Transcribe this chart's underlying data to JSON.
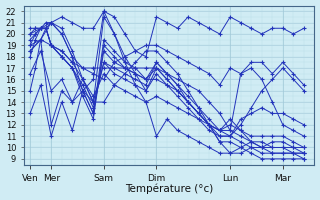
{
  "title": "",
  "xlabel": "Température (°c)",
  "bg_color": "#d0ecf4",
  "grid_color_major": "#a0c8d8",
  "grid_color_minor": "#b8dce8",
  "line_color": "#2233bb",
  "marker": "+",
  "markersize": 3.5,
  "linewidth": 0.7,
  "ylim": [
    8.5,
    22.5
  ],
  "yticks": [
    9,
    10,
    11,
    12,
    13,
    14,
    15,
    16,
    17,
    18,
    19,
    20,
    21,
    22
  ],
  "xtick_labels": [
    "Ven",
    "Mer",
    "Sam",
    "Dim",
    "Lun",
    "Mar"
  ],
  "xtick_positions": [
    0.0,
    1.0,
    3.5,
    6.0,
    9.5,
    12.0
  ],
  "xlim": [
    -0.3,
    13.5
  ],
  "series": [
    {
      "x": [
        0.0,
        0.25,
        0.5,
        0.75,
        1.0,
        1.5,
        2.0,
        2.5,
        3.0,
        3.5,
        4.0,
        4.5,
        5.0,
        5.5,
        6.0,
        6.5,
        7.0,
        7.5,
        8.0,
        8.5,
        9.0,
        9.5,
        10.0,
        10.5,
        11.0,
        11.5,
        12.0,
        12.5,
        13.0
      ],
      "y": [
        15.0,
        17.0,
        19.5,
        20.5,
        21.0,
        20.5,
        18.5,
        16.0,
        14.0,
        21.5,
        20.0,
        18.0,
        16.5,
        15.0,
        16.5,
        15.5,
        14.5,
        13.5,
        12.5,
        11.5,
        11.0,
        11.0,
        12.0,
        13.5,
        15.0,
        16.0,
        17.0,
        16.0,
        15.0
      ]
    },
    {
      "x": [
        0.0,
        0.25,
        0.5,
        0.75,
        1.0,
        1.5,
        2.0,
        2.5,
        3.0,
        3.5,
        4.0,
        4.5,
        5.0,
        5.5,
        6.0,
        6.5,
        7.0,
        7.5,
        8.0,
        8.5,
        9.0,
        9.5,
        10.0,
        10.5,
        11.0,
        11.5,
        12.0,
        12.5,
        13.0
      ],
      "y": [
        18.0,
        19.5,
        20.5,
        21.0,
        21.0,
        20.0,
        18.0,
        15.0,
        13.0,
        19.5,
        18.5,
        17.5,
        17.0,
        16.0,
        17.5,
        16.5,
        15.5,
        14.5,
        13.5,
        12.5,
        11.5,
        12.5,
        11.5,
        10.5,
        10.0,
        10.5,
        10.5,
        10.0,
        9.5
      ]
    },
    {
      "x": [
        0.0,
        0.25,
        0.5,
        0.75,
        1.0,
        1.5,
        2.0,
        2.5,
        3.0,
        3.5,
        4.0,
        4.5,
        5.0,
        5.5,
        6.0,
        6.5,
        7.0,
        7.5,
        8.0,
        8.5,
        9.0,
        9.5,
        10.0,
        10.5,
        11.0,
        11.5,
        12.0,
        12.5,
        13.0
      ],
      "y": [
        19.0,
        20.0,
        20.5,
        20.5,
        19.0,
        18.0,
        17.0,
        14.5,
        12.5,
        19.0,
        18.0,
        17.0,
        16.5,
        16.0,
        16.0,
        15.5,
        15.0,
        14.0,
        13.0,
        12.0,
        11.5,
        11.5,
        11.0,
        10.5,
        10.0,
        10.0,
        10.0,
        9.5,
        9.5
      ]
    },
    {
      "x": [
        0.0,
        0.25,
        0.5,
        0.75,
        1.0,
        1.5,
        2.0,
        2.5,
        3.0,
        3.5,
        4.0,
        4.5,
        5.0,
        5.5,
        6.0,
        6.5,
        7.0,
        7.5,
        8.0,
        8.5,
        9.0,
        9.5,
        10.0,
        10.5,
        11.0,
        11.5,
        12.0,
        12.5,
        13.0
      ],
      "y": [
        19.5,
        20.0,
        20.5,
        20.5,
        19.0,
        18.0,
        17.0,
        15.0,
        13.0,
        18.5,
        17.5,
        17.0,
        16.5,
        16.0,
        17.0,
        16.0,
        15.0,
        14.0,
        13.0,
        12.0,
        11.5,
        12.0,
        11.5,
        11.0,
        11.0,
        11.0,
        11.0,
        10.5,
        10.0
      ]
    },
    {
      "x": [
        0.0,
        0.25,
        0.5,
        0.75,
        1.0,
        1.5,
        2.0,
        2.5,
        3.0,
        3.5,
        4.0,
        4.5,
        5.0,
        5.5,
        6.0,
        6.5,
        7.0,
        7.5,
        8.0,
        8.5,
        9.0,
        9.5,
        10.0,
        10.5,
        11.0,
        11.5,
        12.0,
        12.5,
        13.0
      ],
      "y": [
        20.0,
        20.5,
        20.5,
        20.5,
        19.0,
        18.0,
        17.0,
        15.5,
        13.5,
        17.5,
        17.0,
        16.5,
        16.0,
        15.5,
        17.5,
        16.5,
        15.5,
        14.0,
        13.0,
        12.0,
        11.0,
        11.0,
        10.5,
        10.0,
        9.5,
        9.5,
        9.5,
        9.5,
        9.0
      ]
    },
    {
      "x": [
        0.0,
        0.25,
        0.5,
        0.75,
        1.0,
        1.5,
        2.0,
        2.5,
        3.0,
        3.5,
        4.0,
        4.5,
        5.0,
        5.5,
        6.0,
        6.5,
        7.0,
        7.5,
        8.0,
        8.5,
        9.0,
        9.5,
        10.0,
        10.5,
        11.0,
        11.5,
        12.0,
        12.5,
        13.0
      ],
      "y": [
        20.5,
        20.5,
        20.5,
        20.5,
        19.0,
        18.5,
        17.5,
        16.0,
        14.0,
        17.5,
        16.5,
        16.0,
        15.5,
        15.0,
        17.0,
        16.0,
        15.0,
        14.0,
        13.0,
        12.0,
        10.5,
        10.5,
        10.0,
        9.5,
        9.0,
        9.0,
        9.0,
        9.0,
        9.0
      ]
    },
    {
      "x": [
        0.0,
        0.5,
        1.0,
        1.5,
        2.0,
        2.5,
        3.0,
        3.5,
        4.0,
        4.5,
        5.0,
        5.5,
        6.0,
        6.5,
        7.0,
        7.5,
        8.0,
        8.5,
        9.0,
        9.5,
        10.0,
        10.5,
        11.0,
        11.5,
        12.0,
        12.5,
        13.0
      ],
      "y": [
        13.0,
        15.5,
        11.0,
        14.0,
        11.5,
        15.0,
        16.0,
        22.0,
        20.0,
        17.5,
        15.5,
        14.0,
        11.0,
        12.5,
        11.5,
        11.0,
        10.5,
        10.0,
        9.5,
        9.5,
        10.0,
        10.5,
        10.5,
        10.0,
        10.0,
        10.0,
        10.0
      ]
    },
    {
      "x": [
        0.0,
        0.5,
        1.0,
        1.5,
        2.0,
        2.5,
        3.0,
        3.5,
        4.0,
        4.5,
        5.0,
        5.5,
        6.0,
        6.5,
        7.0,
        7.5,
        8.0,
        8.5,
        9.0,
        9.5,
        10.0,
        10.5,
        11.0,
        11.5,
        12.0,
        12.5,
        13.0
      ],
      "y": [
        16.5,
        18.5,
        15.0,
        16.0,
        14.0,
        16.0,
        14.5,
        16.5,
        15.5,
        15.0,
        14.5,
        14.0,
        14.5,
        14.0,
        13.5,
        13.0,
        12.5,
        12.0,
        11.5,
        11.0,
        12.5,
        13.0,
        13.5,
        13.0,
        13.0,
        12.5,
        12.0
      ]
    },
    {
      "x": [
        0.0,
        0.5,
        1.0,
        1.5,
        2.0,
        2.5,
        3.0,
        3.5,
        4.0,
        4.5,
        5.0,
        5.5,
        6.0,
        6.5,
        7.0,
        7.5,
        8.0,
        8.5,
        9.0,
        9.5,
        10.0,
        10.5,
        11.0,
        11.5,
        12.0,
        12.5,
        13.0
      ],
      "y": [
        18.5,
        19.5,
        12.0,
        15.0,
        14.0,
        15.0,
        14.0,
        14.0,
        15.5,
        16.5,
        17.5,
        18.5,
        18.5,
        17.5,
        16.5,
        15.0,
        13.5,
        12.0,
        10.5,
        9.5,
        9.5,
        10.0,
        10.0,
        9.5,
        9.5,
        9.5,
        9.5
      ]
    },
    {
      "x": [
        0.0,
        0.5,
        1.0,
        1.5,
        2.0,
        2.5,
        3.0,
        3.5,
        4.0,
        4.5,
        5.0,
        5.5,
        6.0,
        6.5,
        7.0,
        7.5,
        8.0,
        8.5,
        9.0,
        9.5,
        10.0,
        10.5,
        11.0,
        11.5,
        12.0,
        12.5,
        13.0
      ],
      "y": [
        19.0,
        19.5,
        19.0,
        18.5,
        17.5,
        17.0,
        16.5,
        16.0,
        17.5,
        18.0,
        18.5,
        19.0,
        19.0,
        18.5,
        18.0,
        17.5,
        17.0,
        16.5,
        15.5,
        17.0,
        16.5,
        17.0,
        16.0,
        14.0,
        12.0,
        11.5,
        11.0
      ]
    },
    {
      "x": [
        0.0,
        0.5,
        1.0,
        1.5,
        2.0,
        2.5,
        3.0,
        3.5,
        4.0,
        4.5,
        5.0,
        5.5,
        6.0,
        6.5,
        7.0,
        7.5,
        8.0,
        8.5,
        9.0,
        9.5,
        10.0,
        10.5,
        11.0,
        11.5,
        12.0,
        12.5,
        13.0
      ],
      "y": [
        20.0,
        20.5,
        21.0,
        21.5,
        21.0,
        20.5,
        20.5,
        22.0,
        21.5,
        20.0,
        18.5,
        18.0,
        21.5,
        21.0,
        20.5,
        21.5,
        21.0,
        20.5,
        20.0,
        21.5,
        21.0,
        20.5,
        20.0,
        20.5,
        20.5,
        20.0,
        20.5
      ]
    },
    {
      "x": [
        0.0,
        0.5,
        1.0,
        1.5,
        2.0,
        2.5,
        3.0,
        3.5,
        4.0,
        4.5,
        5.0,
        5.5,
        6.0,
        6.5,
        7.0,
        7.5,
        8.0,
        8.5,
        9.0,
        9.5,
        10.0,
        10.5,
        11.0,
        11.5,
        12.0,
        12.5,
        13.0
      ],
      "y": [
        18.5,
        19.5,
        21.0,
        20.0,
        18.0,
        17.0,
        17.0,
        17.0,
        17.0,
        17.0,
        17.0,
        17.0,
        17.0,
        16.5,
        16.0,
        15.5,
        15.0,
        14.0,
        13.0,
        11.5,
        16.5,
        17.5,
        17.5,
        16.5,
        17.5,
        16.5,
        15.5
      ]
    }
  ]
}
